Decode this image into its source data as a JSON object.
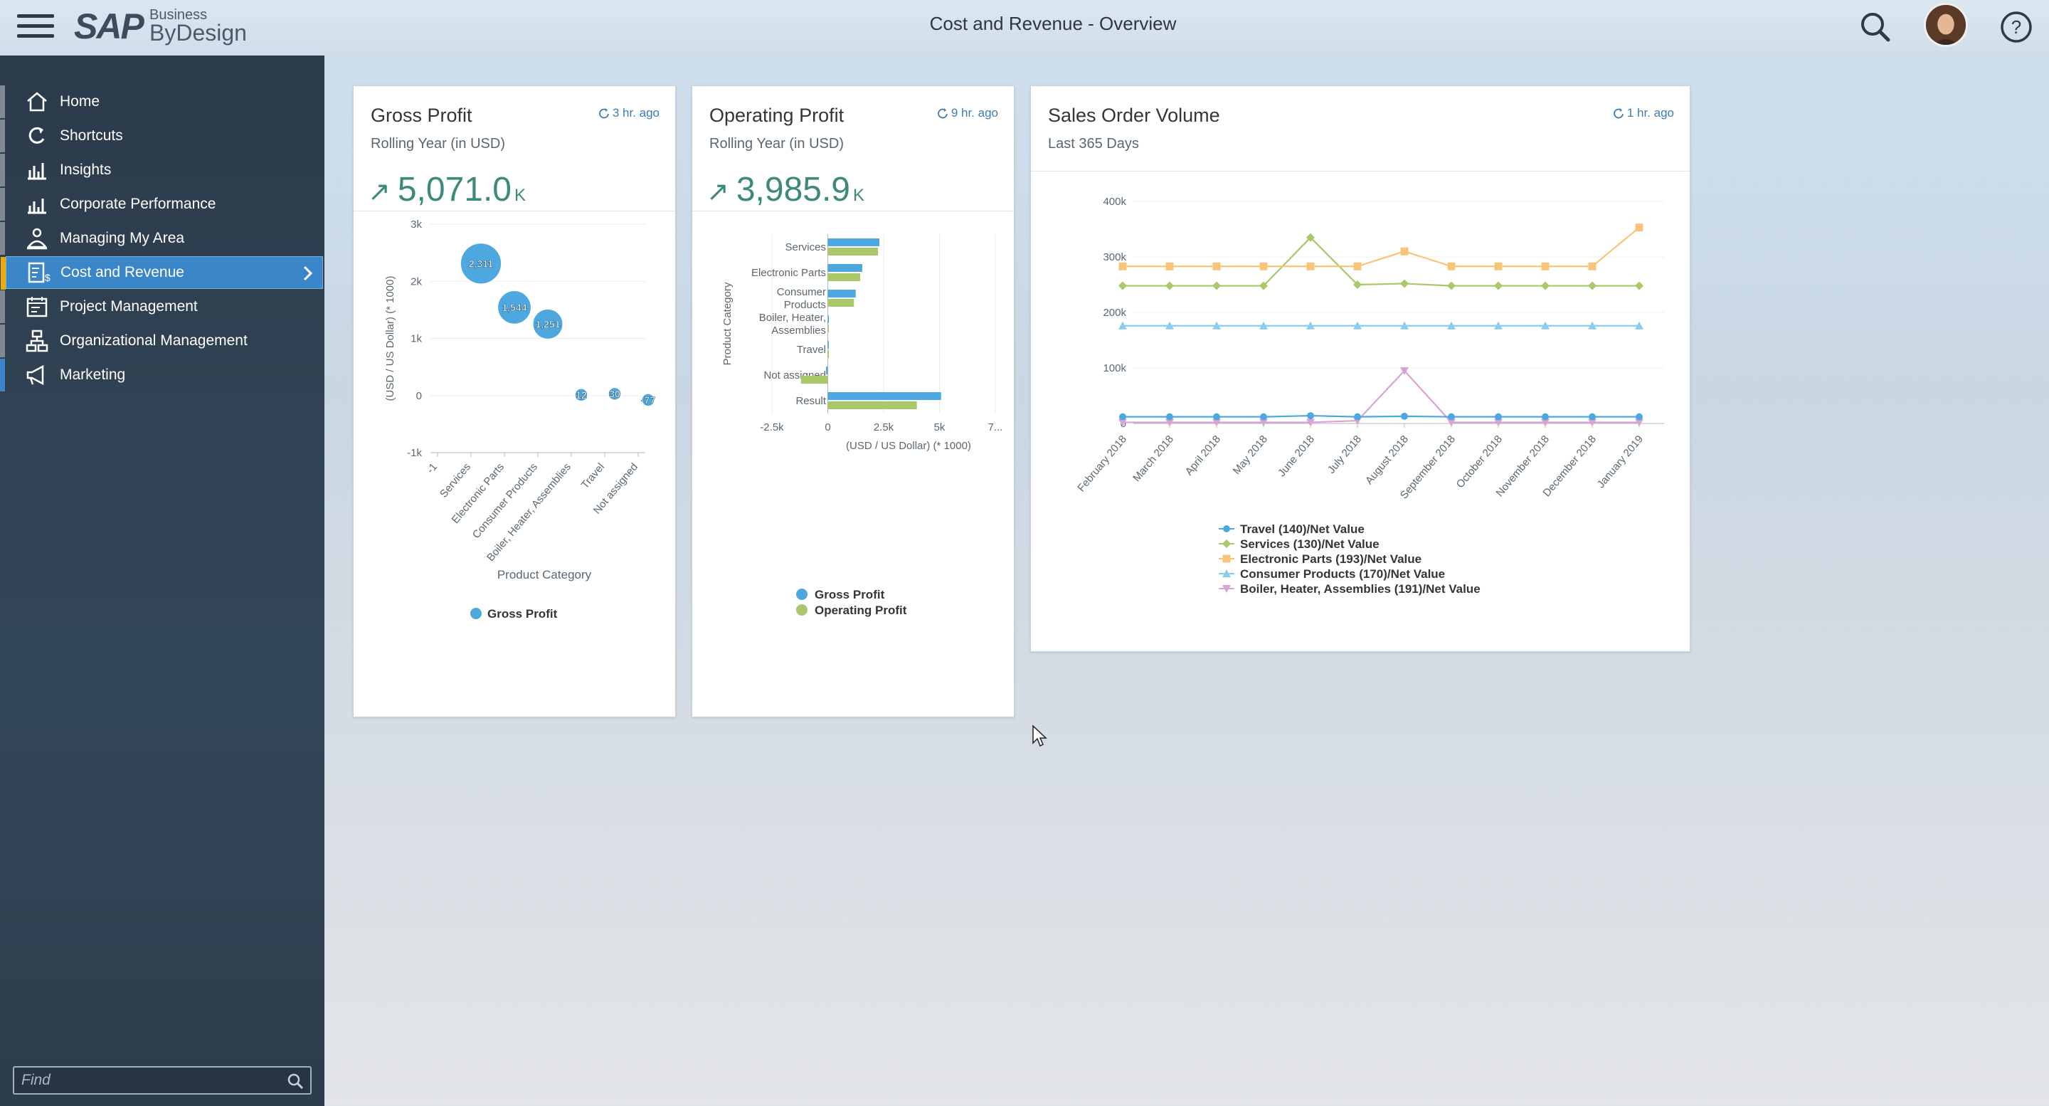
{
  "header": {
    "title": "Cost and Revenue - Overview",
    "logo": {
      "sap": "SAP",
      "business": "Business",
      "bydesign": "ByDesign"
    },
    "icons": {
      "menu": "hamburger-menu-icon",
      "search": "search-icon",
      "help": "help-icon",
      "avatar": "user-avatar"
    }
  },
  "sidebar": {
    "items": [
      {
        "label": "Home",
        "icon": "home-icon",
        "active": false
      },
      {
        "label": "Shortcuts",
        "icon": "shortcuts-icon",
        "active": false
      },
      {
        "label": "Insights",
        "icon": "insights-icon",
        "active": false
      },
      {
        "label": "Corporate Performance",
        "icon": "corporate-performance-icon",
        "active": false
      },
      {
        "label": "Managing My Area",
        "icon": "managing-my-area-icon",
        "active": false
      },
      {
        "label": "Cost and Revenue",
        "icon": "cost-and-revenue-icon",
        "active": true
      },
      {
        "label": "Project Management",
        "icon": "project-management-icon",
        "active": false
      },
      {
        "label": "Organizational Management",
        "icon": "organizational-management-icon",
        "active": false
      },
      {
        "label": "Marketing",
        "icon": "marketing-icon",
        "active": false
      }
    ],
    "find_placeholder": "Find"
  },
  "colors": {
    "accent": "#3a86c8",
    "kpi": "#3e8a7a",
    "blue": "#4ea8e0",
    "green": "#a8c86a",
    "orange": "#f7c57a",
    "lightblue": "#86cdee",
    "pink": "#d9a3d6"
  },
  "cards": {
    "gross_profit": {
      "title": "Gross Profit",
      "subtitle": "Rolling Year (in USD)",
      "refresh": "3 hr. ago",
      "value": "5,071.0",
      "scale": "K"
    },
    "operating_profit": {
      "title": "Operating Profit",
      "subtitle": "Rolling Year (in USD)",
      "refresh": "9 hr. ago",
      "value": "3,985.9",
      "scale": "K"
    },
    "sales_order_volume": {
      "title": "Sales Order Volume",
      "subtitle": "Last 365 Days",
      "refresh": "1 hr. ago"
    }
  },
  "chart_data": [
    {
      "type": "scatter",
      "title": "",
      "xlabel": "Product Category",
      "ylabel": "(USD / US Dollar) (* 1000)",
      "categories": [
        "-1",
        "Services",
        "Electronic Parts",
        "Consumer Products",
        "Boiler, Heater, Assemblies",
        "Travel",
        "Not assigned"
      ],
      "yticks": [
        "-1k",
        "0",
        "1k",
        "2k",
        "3k"
      ],
      "ylim": [
        -1000,
        3000
      ],
      "series": [
        {
          "name": "Gross Profit",
          "values": [
            null,
            2311,
            1544,
            1251,
            12,
            30,
            -77
          ],
          "labels": [
            null,
            "2,311",
            "1,544",
            "1,251",
            "12",
            "30",
            "-77"
          ]
        }
      ],
      "legend": "bottom"
    },
    {
      "type": "bar",
      "orientation": "horizontal",
      "title": "",
      "xlabel": "(USD / US Dollar) (* 1000)",
      "ylabel": "Product Category",
      "categories": [
        "Services",
        "Electronic Parts",
        "Consumer Products",
        "Boiler, Heater, Assemblies",
        "Travel",
        "Not assigned",
        "Result"
      ],
      "xticks": [
        "-2.5k",
        "0",
        "2.5k",
        "5k",
        "7..."
      ],
      "xlim": [
        -2500,
        7500
      ],
      "series": [
        {
          "name": "Gross Profit",
          "values": [
            2311,
            1544,
            1251,
            12,
            30,
            -77,
            5071
          ]
        },
        {
          "name": "Operating Profit",
          "values": [
            2250,
            1450,
            1170,
            10,
            0,
            -1200,
            3986
          ]
        }
      ],
      "legend": "bottom"
    },
    {
      "type": "line",
      "title": "",
      "x": [
        "February 2018",
        "March 2018",
        "April 2018",
        "May 2018",
        "June 2018",
        "July 2018",
        "August 2018",
        "September 2018",
        "October 2018",
        "November 2018",
        "December 2018",
        "January 2019"
      ],
      "yticks": [
        "0",
        "100k",
        "200k",
        "300k",
        "400k"
      ],
      "ylim": [
        0,
        400000
      ],
      "series": [
        {
          "name": "Travel (140)/Net Value",
          "values": [
            12000,
            12000,
            12000,
            12000,
            14000,
            12000,
            13000,
            12000,
            12000,
            12000,
            12000,
            12000
          ]
        },
        {
          "name": "Services (130)/Net Value",
          "values": [
            248000,
            248000,
            248000,
            248000,
            335000,
            250000,
            252000,
            248000,
            248000,
            248000,
            248000,
            248000
          ]
        },
        {
          "name": "Electronic Parts (193)/Net Value",
          "values": [
            283000,
            283000,
            283000,
            283000,
            283000,
            283000,
            310000,
            283000,
            283000,
            283000,
            283000,
            353000
          ]
        },
        {
          "name": "Consumer Products (170)/Net Value",
          "values": [
            176000,
            176000,
            176000,
            176000,
            176000,
            176000,
            176000,
            176000,
            176000,
            176000,
            176000,
            176000
          ]
        },
        {
          "name": "Boiler, Heater, Assemblies (191)/Net Value",
          "values": [
            2000,
            2000,
            2000,
            2000,
            2000,
            5000,
            95000,
            2000,
            2000,
            2000,
            2000,
            2000
          ]
        }
      ],
      "legend": "bottom"
    }
  ]
}
